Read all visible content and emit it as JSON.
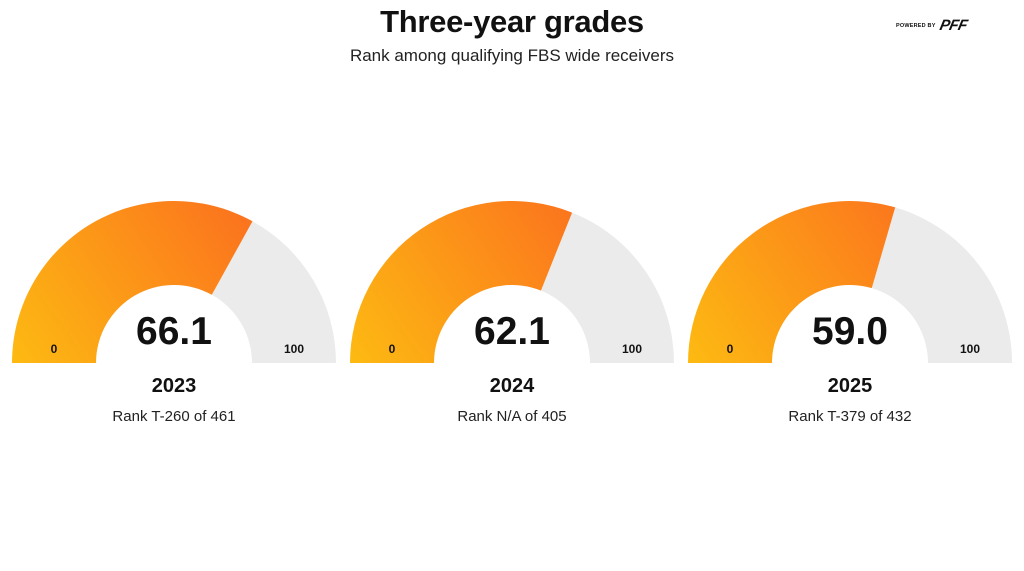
{
  "header": {
    "title": "Three-year grades",
    "subtitle": "Rank among qualifying FBS wide receivers",
    "brand_small": "POWERED BY",
    "brand_logo": "PFF"
  },
  "colors": {
    "fill_start": "#FDBA12",
    "fill_end": "#FB711E",
    "track": "#EBEBEB"
  },
  "chart_data": {
    "type": "gauge",
    "title": "Three-year grades",
    "subtitle": "Rank among qualifying FBS wide receivers",
    "range": [
      0,
      100
    ],
    "gauges": [
      {
        "year": "2023",
        "value": 66.1,
        "value_label": "66.1",
        "rank_label": "Rank T-260 of 461",
        "min_label": "0",
        "max_label": "100"
      },
      {
        "year": "2024",
        "value": 62.1,
        "value_label": "62.1",
        "rank_label": "Rank N/A of 405",
        "min_label": "0",
        "max_label": "100"
      },
      {
        "year": "2025",
        "value": 59.0,
        "value_label": "59.0",
        "rank_label": "Rank T-379 of 432",
        "min_label": "0",
        "max_label": "100"
      }
    ]
  }
}
